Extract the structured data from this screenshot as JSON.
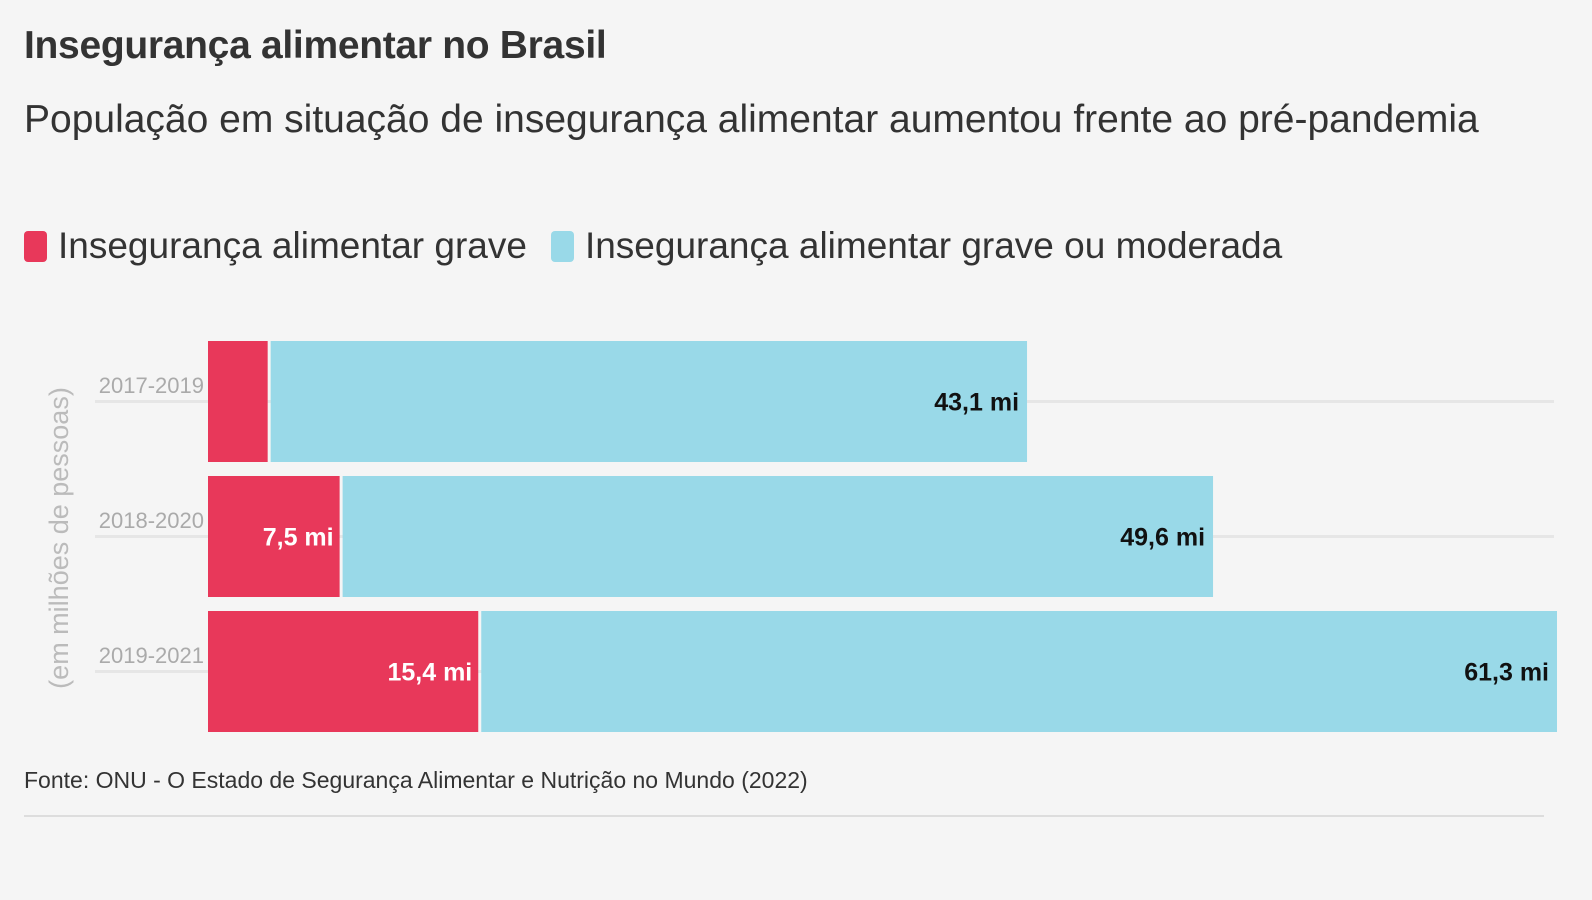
{
  "title": "Insegurança alimentar no Brasil",
  "subtitle": "População em situação de insegurança alimentar aumentou frente ao pré-pandemia",
  "legend": [
    {
      "label": "Insegurança alimentar grave",
      "color": "#e8385a"
    },
    {
      "label": "Insegurança alimentar grave ou moderada",
      "color": "#99d9e8"
    }
  ],
  "source": "Fonte: ONU - O Estado de Segurança Alimentar e Nutrição no Mundo (2022)",
  "chart_data": {
    "type": "bar",
    "orientation": "horizontal",
    "ylabel": "(em milhões de pessoas)",
    "categories": [
      "2017-2019",
      "2018-2020",
      "2019-2021"
    ],
    "series": [
      {
        "name": "Insegurança alimentar grave",
        "values": [
          3.4,
          7.5,
          15.4
        ],
        "labels": [
          "",
          "7,5 mi",
          "15,4 mi"
        ],
        "color": "#e8385a"
      },
      {
        "name": "Insegurança alimentar grave ou moderada",
        "values": [
          43.1,
          49.6,
          61.3
        ],
        "labels": [
          "43,1 mi",
          "49,6 mi",
          "61,3 mi"
        ],
        "color": "#99d9e8"
      }
    ],
    "xlim": [
      0,
      76.7
    ],
    "grid": true,
    "legend_position": "top-left"
  }
}
